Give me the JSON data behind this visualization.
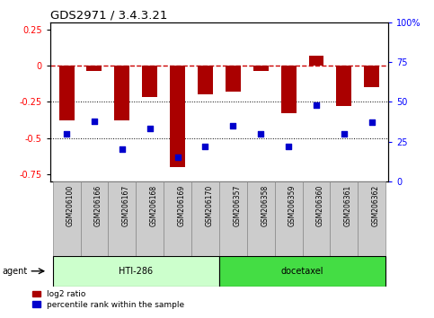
{
  "title": "GDS2971 / 3.4.3.21",
  "categories": [
    "GSM206100",
    "GSM206166",
    "GSM206167",
    "GSM206168",
    "GSM206169",
    "GSM206170",
    "GSM206357",
    "GSM206358",
    "GSM206359",
    "GSM206360",
    "GSM206361",
    "GSM206362"
  ],
  "log2_ratio": [
    -0.38,
    -0.04,
    -0.38,
    -0.22,
    -0.7,
    -0.2,
    -0.18,
    -0.04,
    -0.33,
    0.07,
    -0.28,
    -0.15
  ],
  "percentile_rank": [
    30,
    38,
    20,
    33,
    15,
    22,
    35,
    30,
    22,
    48,
    30,
    37
  ],
  "bar_color": "#aa0000",
  "dot_color": "#0000cc",
  "ylim_left": [
    -0.8,
    0.3
  ],
  "ylim_right": [
    0,
    100
  ],
  "yticks_left": [
    -0.75,
    -0.5,
    -0.25,
    0,
    0.25
  ],
  "yticks_right": [
    0,
    25,
    50,
    75,
    100
  ],
  "hlines": [
    -0.25,
    -0.5
  ],
  "zero_line_color": "#cc0000",
  "hline_color": "#000000",
  "bg_color": "#ffffff",
  "label_log2": "log2 ratio",
  "label_pct": "percentile rank within the sample",
  "agent_label": "agent",
  "bar_width": 0.55,
  "group1_label": "HTI-286",
  "group2_label": "docetaxel",
  "group1_color": "#ccffcc",
  "group2_color": "#44dd44",
  "xlabel_box_color": "#cccccc",
  "xlabel_edge_color": "#888888"
}
